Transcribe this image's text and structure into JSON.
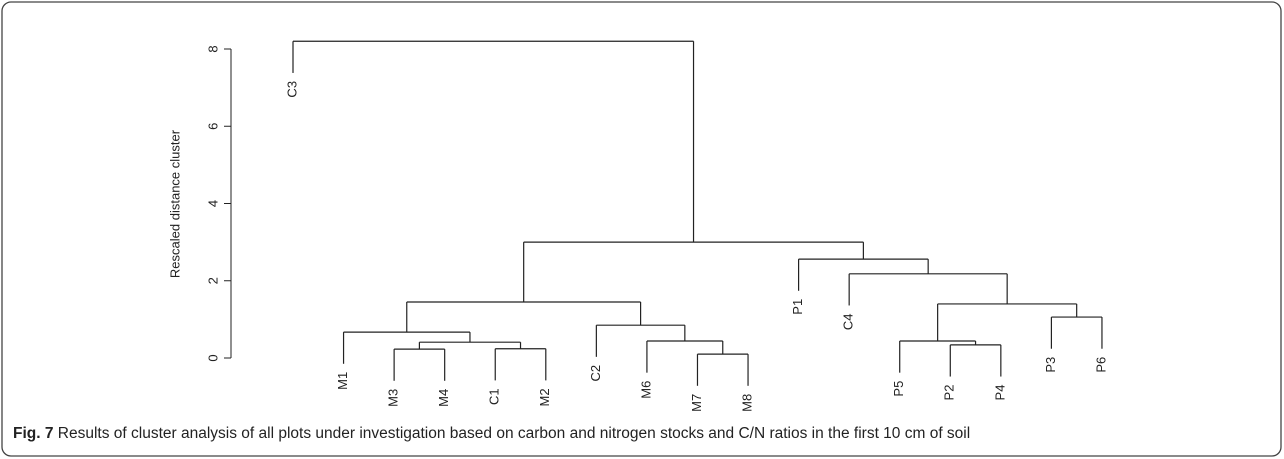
{
  "chart_data": {
    "type": "dendrogram",
    "ylabel": "Rescaled distance cluster",
    "ylim": [
      0,
      8
    ],
    "yticks": [
      0,
      2,
      4,
      6,
      8
    ],
    "hang": 0.82,
    "color": "#222222",
    "leaves": [
      "C3",
      "M1",
      "M3",
      "M4",
      "C1",
      "M2",
      "C2",
      "M6",
      "M7",
      "M8",
      "P1",
      "C4",
      "P5",
      "P2",
      "P4",
      "P3",
      "P6"
    ],
    "merges": [
      {
        "children": [
          -9,
          -10
        ],
        "height": 0.1
      },
      {
        "children": [
          -3,
          -4
        ],
        "height": 0.23
      },
      {
        "children": [
          -5,
          -6
        ],
        "height": 0.24
      },
      {
        "children": [
          2,
          3
        ],
        "height": 0.41
      },
      {
        "children": [
          -2,
          4
        ],
        "height": 0.67
      },
      {
        "children": [
          -8,
          1
        ],
        "height": 0.44
      },
      {
        "children": [
          -7,
          6
        ],
        "height": 0.85
      },
      {
        "children": [
          5,
          7
        ],
        "height": 1.45
      },
      {
        "children": [
          -14,
          -15
        ],
        "height": 0.34
      },
      {
        "children": [
          -13,
          9
        ],
        "height": 0.44
      },
      {
        "children": [
          -16,
          -17
        ],
        "height": 1.06
      },
      {
        "children": [
          10,
          11
        ],
        "height": 1.4
      },
      {
        "children": [
          -12,
          12
        ],
        "height": 2.18
      },
      {
        "children": [
          -11,
          13
        ],
        "height": 2.56
      },
      {
        "children": [
          8,
          14
        ],
        "height": 3.0
      },
      {
        "children": [
          -1,
          15
        ],
        "height": 8.2
      }
    ]
  },
  "caption": {
    "label": "Fig. 7",
    "text": "Results of cluster analysis of all plots under investigation based on carbon and nitrogen stocks and C/N ratios in the first 10 cm of soil"
  }
}
